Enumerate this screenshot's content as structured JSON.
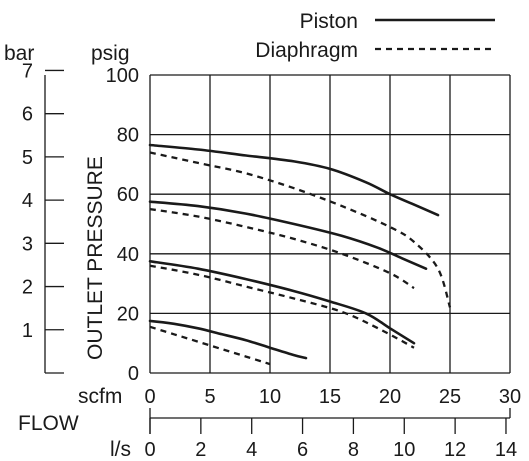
{
  "chart_data": {
    "type": "line",
    "legend": {
      "placement": "top-right",
      "entries": [
        "Piston",
        "Diaphragm"
      ]
    },
    "left_labels": {
      "bar": "bar",
      "psig": "psig"
    },
    "ylabel": "OUTLET PRESSURE",
    "xlabel": "FLOW",
    "x_primary": {
      "unit": "scfm",
      "ticks": [
        "0",
        "5",
        "10",
        "15",
        "20",
        "25",
        "30"
      ],
      "range": [
        0,
        30
      ]
    },
    "x_secondary": {
      "unit": "l/s",
      "ticks": [
        "0",
        "2",
        "4",
        "6",
        "8",
        "10",
        "12",
        "14"
      ]
    },
    "y_psig": {
      "ticks": [
        "0",
        "20",
        "40",
        "60",
        "80",
        "100"
      ],
      "range": [
        0,
        100
      ]
    },
    "y_bar": {
      "ticks": [
        "1",
        "2",
        "3",
        "4",
        "5",
        "6",
        "7"
      ]
    },
    "grid": true,
    "series": [
      {
        "name": "Piston",
        "style": "solid",
        "x": [
          0,
          2,
          4,
          6,
          8,
          10,
          12,
          13
        ],
        "y": [
          17.5,
          16.5,
          15,
          13,
          11,
          8.5,
          6,
          5
        ]
      },
      {
        "name": "Piston",
        "style": "solid",
        "x": [
          0,
          4,
          8,
          12,
          15,
          18,
          20,
          22
        ],
        "y": [
          37.5,
          35,
          31.5,
          27.5,
          24,
          20,
          15,
          10
        ]
      },
      {
        "name": "Piston",
        "style": "solid",
        "x": [
          0,
          4,
          8,
          12,
          16,
          19,
          21,
          23
        ],
        "y": [
          57.5,
          56,
          53.5,
          50,
          46,
          42,
          38.5,
          35
        ]
      },
      {
        "name": "Piston",
        "style": "solid",
        "x": [
          0,
          4,
          8,
          12,
          15,
          18,
          20,
          22,
          24
        ],
        "y": [
          76.5,
          75,
          73,
          71,
          68.5,
          64,
          60,
          56.5,
          53
        ]
      },
      {
        "name": "Diaphragm",
        "style": "dashed",
        "x": [
          0,
          2,
          4,
          6,
          8,
          10
        ],
        "y": [
          15.5,
          13,
          10.5,
          8,
          5.5,
          3
        ]
      },
      {
        "name": "Diaphragm",
        "style": "dashed",
        "x": [
          0,
          4,
          8,
          12,
          16,
          19,
          22
        ],
        "y": [
          36,
          33,
          29,
          25,
          20.5,
          15,
          8.5
        ]
      },
      {
        "name": "Diaphragm",
        "style": "dashed",
        "x": [
          0,
          4,
          8,
          12,
          16,
          20,
          22
        ],
        "y": [
          55,
          52.5,
          49,
          45,
          40,
          33.5,
          28.5
        ]
      },
      {
        "name": "Diaphragm",
        "style": "dashed",
        "x": [
          0,
          4,
          8,
          12,
          16,
          20,
          22,
          24,
          25
        ],
        "y": [
          74,
          70.5,
          67,
          62,
          56,
          49,
          44,
          35,
          22
        ]
      }
    ]
  }
}
